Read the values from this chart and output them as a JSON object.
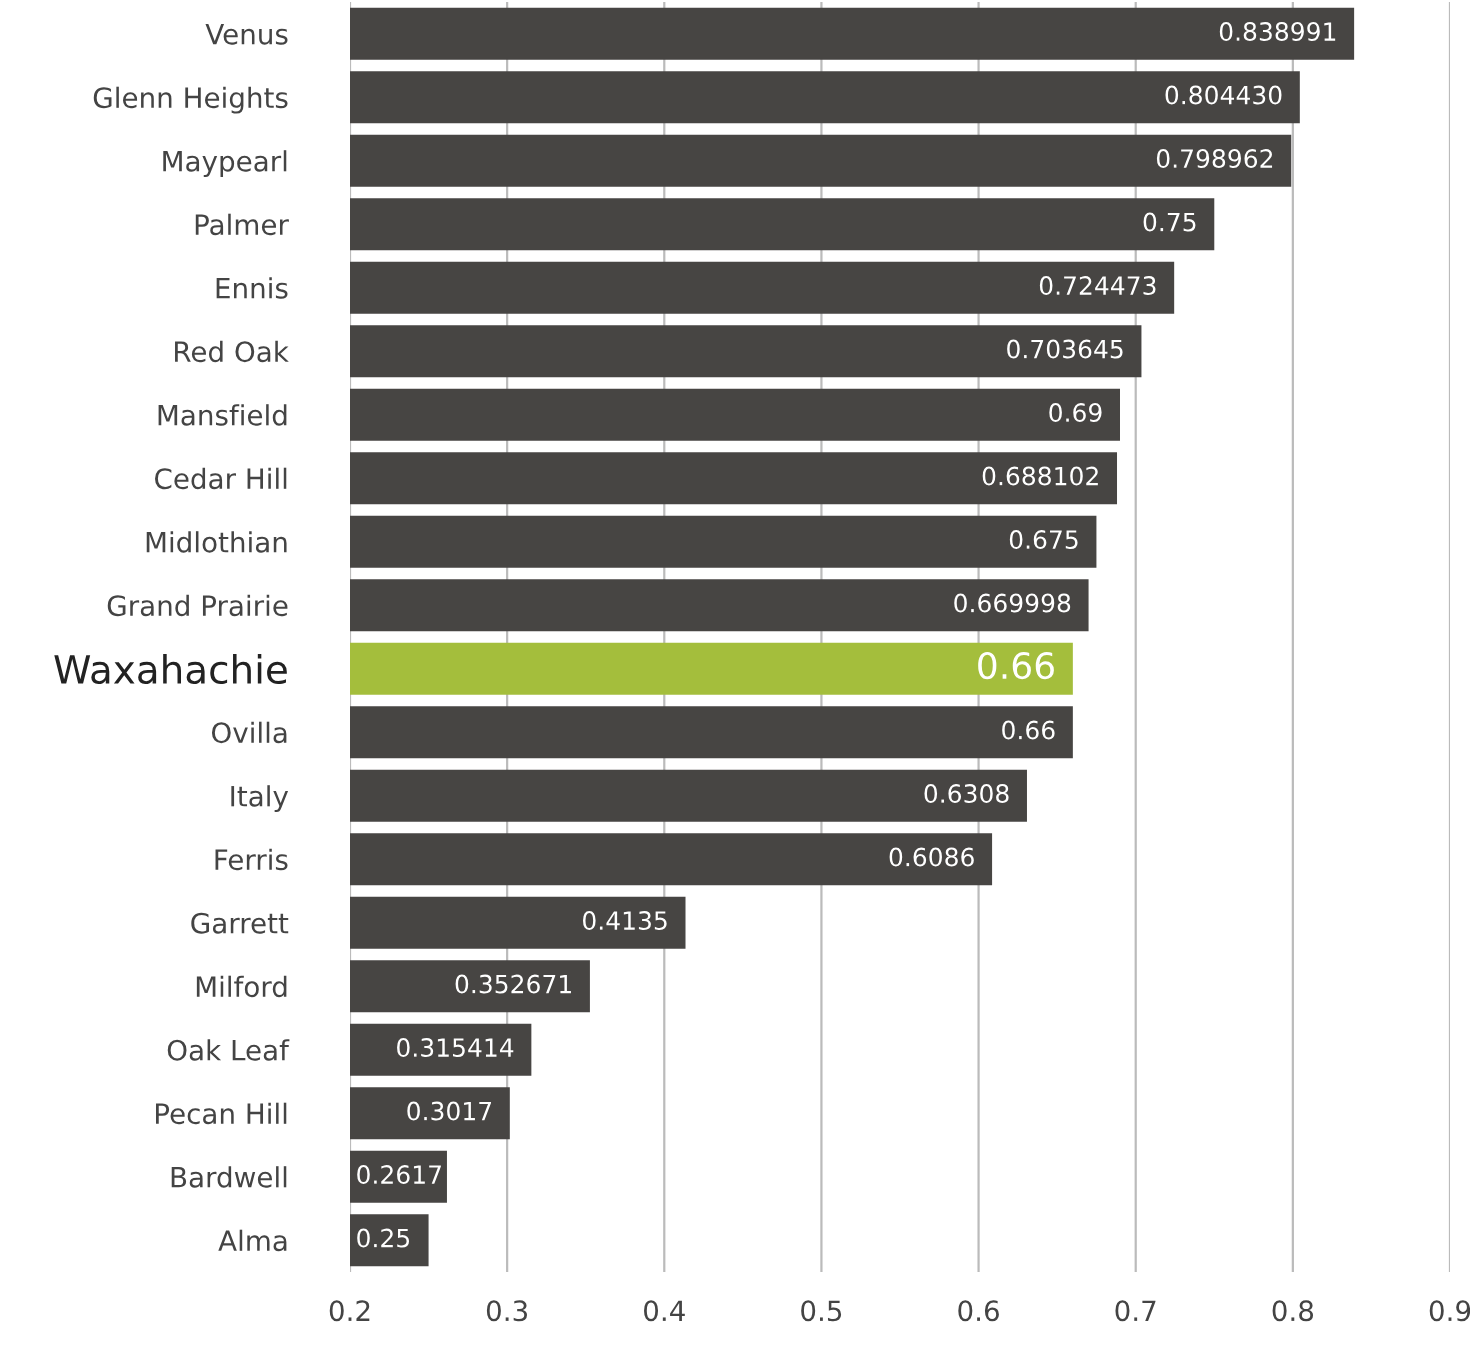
{
  "chart_data": {
    "type": "bar",
    "orientation": "horizontal",
    "categories": [
      "Venus",
      "Glenn Heights",
      "Maypearl",
      "Palmer",
      "Ennis",
      "Red Oak",
      "Mansfield",
      "Cedar Hill",
      "Midlothian",
      "Grand Prairie",
      "Waxahachie",
      "Ovilla",
      "Italy",
      "Ferris",
      "Garrett",
      "Milford",
      "Oak Leaf",
      "Pecan Hill",
      "Bardwell",
      "Alma"
    ],
    "values": [
      0.838991,
      0.80443,
      0.798962,
      0.75,
      0.724473,
      0.703645,
      0.69,
      0.688102,
      0.675,
      0.669998,
      0.66,
      0.66,
      0.6308,
      0.6086,
      0.4135,
      0.352671,
      0.315414,
      0.3017,
      0.2617,
      0.25
    ],
    "value_labels": [
      "0.838991",
      "0.804430",
      "0.798962",
      "0.75",
      "0.724473",
      "0.703645",
      "0.69",
      "0.688102",
      "0.675",
      "0.669998",
      "0.66",
      "0.66",
      "0.6308",
      "0.6086",
      "0.4135",
      "0.352671",
      "0.315414",
      "0.3017",
      "0.2617",
      "0.25"
    ],
    "colors": [
      "#474543",
      "#474543",
      "#474543",
      "#474543",
      "#474543",
      "#474543",
      "#474543",
      "#474543",
      "#474543",
      "#474543",
      "#a4be3c",
      "#474543",
      "#474543",
      "#474543",
      "#474543",
      "#474543",
      "#474543",
      "#474543",
      "#474543",
      "#474543"
    ],
    "xlim": [
      0.2,
      0.9
    ],
    "xticks": [
      0.2,
      0.3,
      0.4,
      0.5,
      0.6,
      0.7,
      0.8,
      0.9
    ],
    "grid": "x",
    "legend": false
  }
}
